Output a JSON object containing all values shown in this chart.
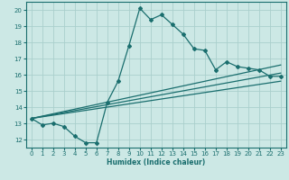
{
  "xlabel": "Humidex (Indice chaleur)",
  "background_color": "#cce8e5",
  "grid_color": "#aacfcc",
  "line_color": "#1a6e6e",
  "xlim": [
    -0.5,
    23.5
  ],
  "ylim": [
    11.5,
    20.5
  ],
  "xticks": [
    0,
    1,
    2,
    3,
    4,
    5,
    6,
    7,
    8,
    9,
    10,
    11,
    12,
    13,
    14,
    15,
    16,
    17,
    18,
    19,
    20,
    21,
    22,
    23
  ],
  "yticks": [
    12,
    13,
    14,
    15,
    16,
    17,
    18,
    19,
    20
  ],
  "line1_x": [
    0,
    1,
    2,
    3,
    4,
    5,
    6,
    7,
    8,
    9,
    10,
    11,
    12,
    13,
    14,
    15,
    16,
    17,
    18,
    19,
    20,
    21,
    22,
    23
  ],
  "line1_y": [
    13.3,
    12.9,
    13.0,
    12.8,
    12.2,
    11.8,
    11.8,
    14.3,
    15.6,
    17.8,
    20.1,
    19.4,
    19.7,
    19.1,
    18.5,
    17.6,
    17.5,
    16.3,
    16.8,
    16.5,
    16.4,
    16.3,
    15.9,
    15.9
  ],
  "line2_x": [
    0,
    23
  ],
  "line2_y": [
    13.3,
    16.1
  ],
  "line3_x": [
    0,
    23
  ],
  "line3_y": [
    13.3,
    15.6
  ],
  "line4_x": [
    0,
    23
  ],
  "line4_y": [
    13.3,
    16.6
  ]
}
